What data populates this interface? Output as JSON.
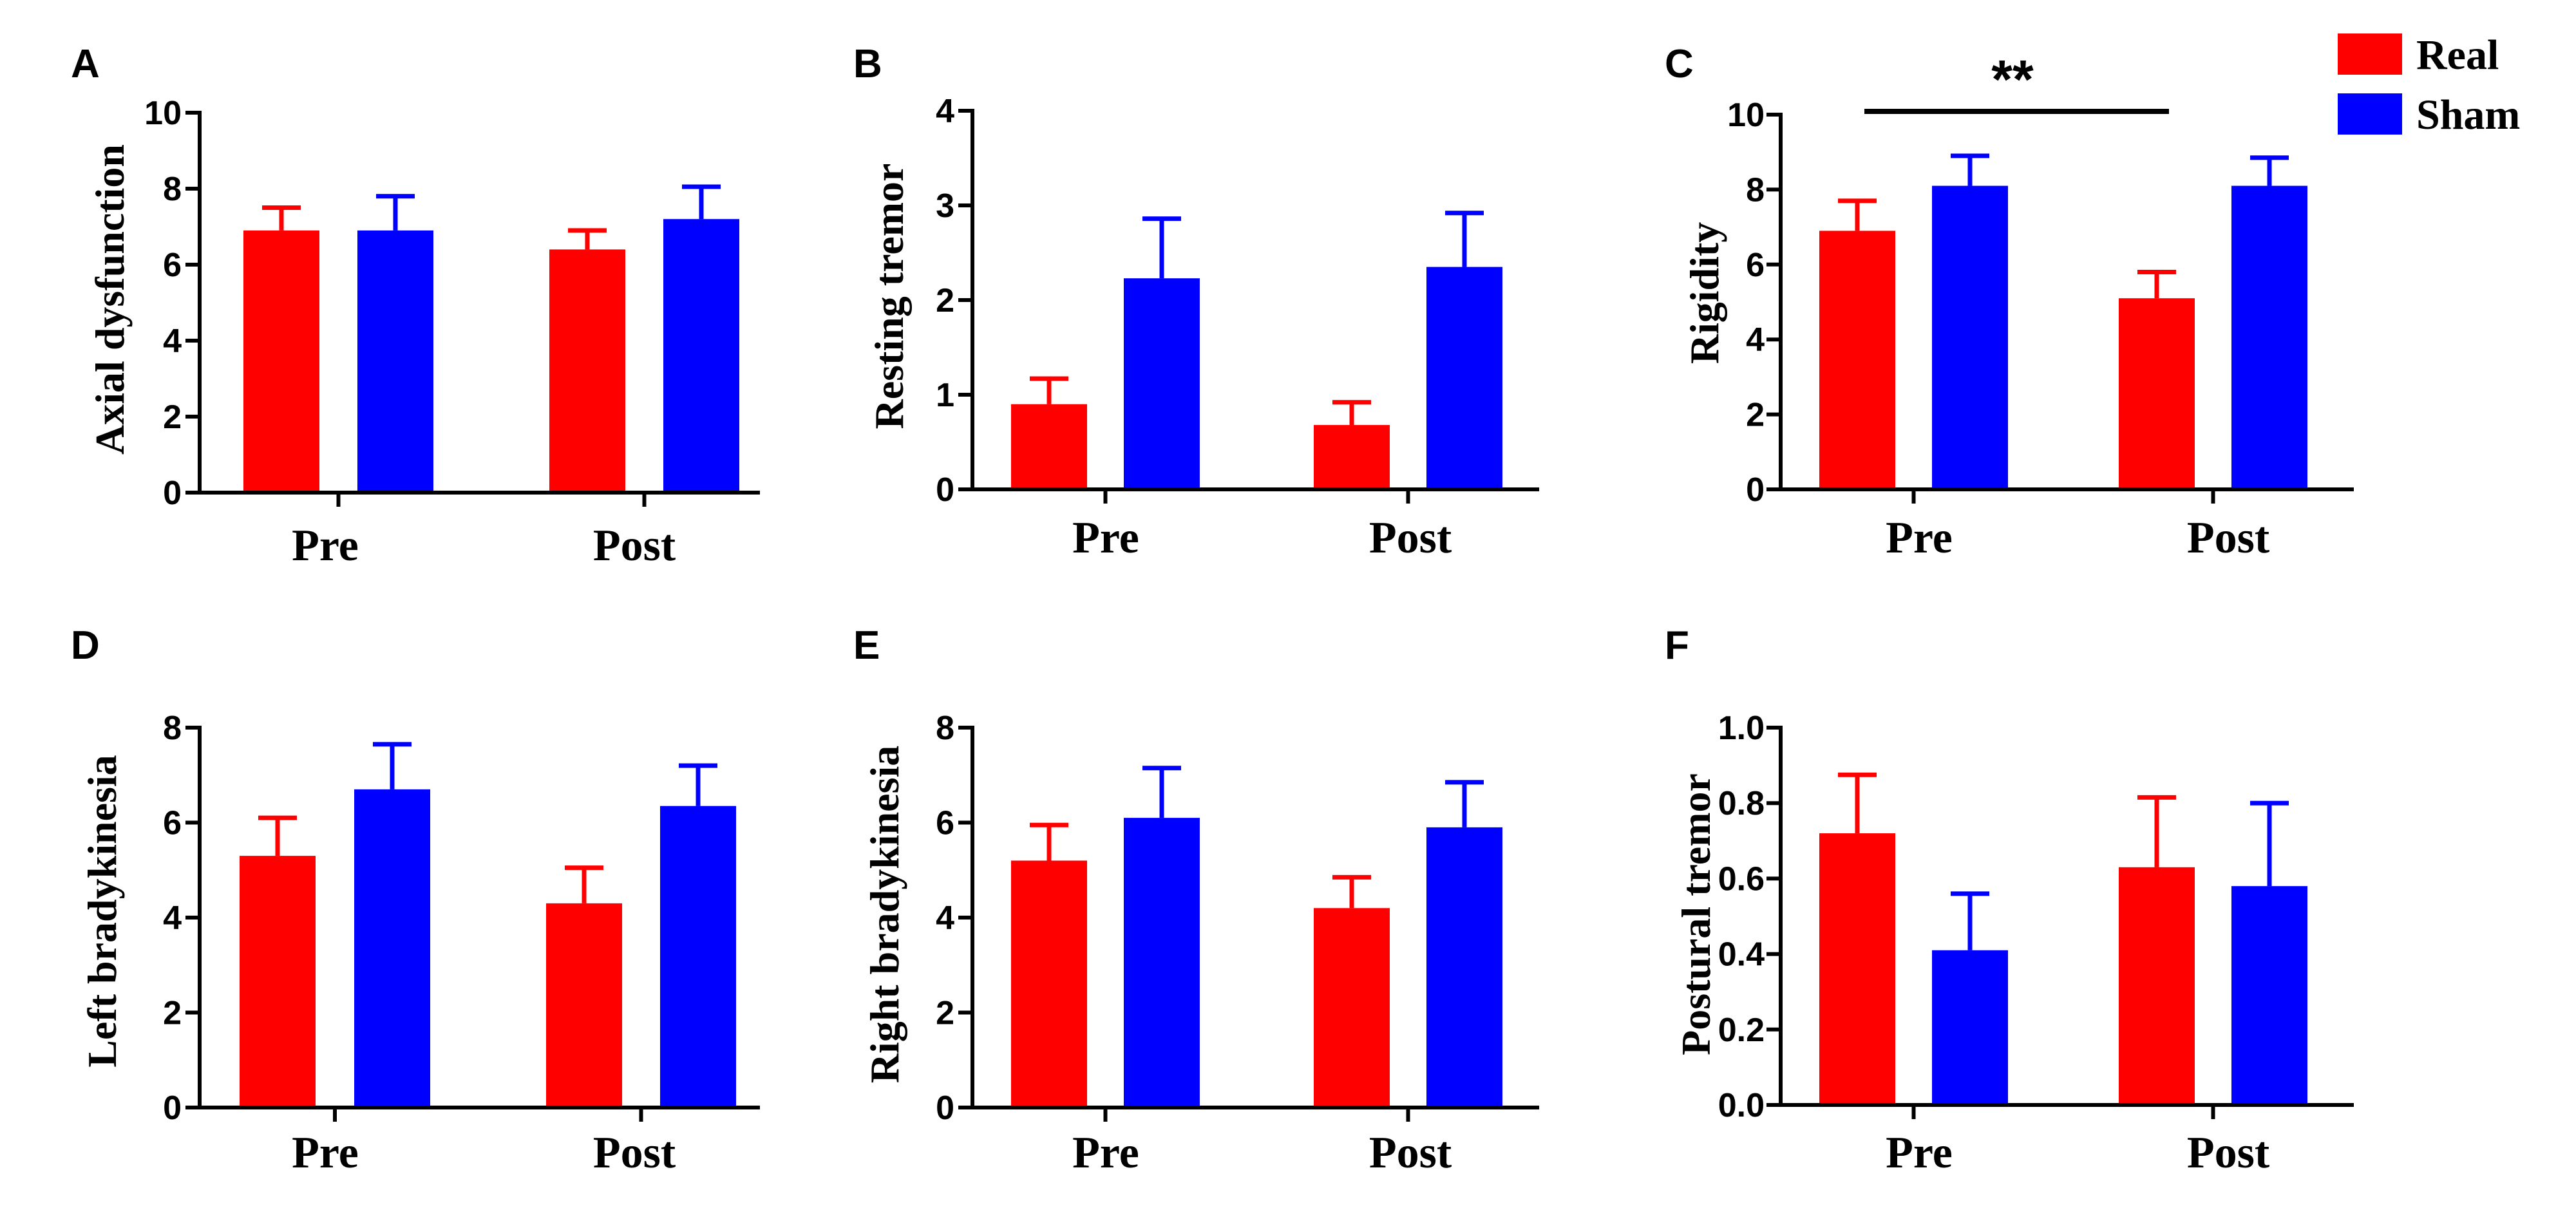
{
  "legend": {
    "position": "top-right",
    "items": [
      {
        "label": "Real",
        "color": "#ff0000"
      },
      {
        "label": "Sham",
        "color": "#0000ff"
      }
    ]
  },
  "chart_data": [
    {
      "panel": "A",
      "type": "bar",
      "ylabel": "Axial dysfunction",
      "categories": [
        "Pre",
        "Post"
      ],
      "ylim": [
        0,
        10
      ],
      "yticks": [
        "0",
        "2",
        "4",
        "6",
        "8",
        "10"
      ],
      "series": [
        {
          "name": "Real",
          "values": [
            6.9,
            6.4
          ],
          "errors": [
            0.6,
            0.5
          ]
        },
        {
          "name": "Sham",
          "values": [
            6.9,
            7.2
          ],
          "errors": [
            0.9,
            0.85
          ]
        }
      ]
    },
    {
      "panel": "B",
      "type": "bar",
      "ylabel": "Resting tremor",
      "categories": [
        "Pre",
        "Post"
      ],
      "ylim": [
        0,
        4
      ],
      "yticks": [
        "0",
        "1",
        "2",
        "3",
        "4"
      ],
      "series": [
        {
          "name": "Real",
          "values": [
            0.9,
            0.68
          ],
          "errors": [
            0.27,
            0.24
          ]
        },
        {
          "name": "Sham",
          "values": [
            2.23,
            2.35
          ],
          "errors": [
            0.63,
            0.57
          ]
        }
      ]
    },
    {
      "panel": "C",
      "type": "bar",
      "ylabel": "Rigidity",
      "categories": [
        "Pre",
        "Post"
      ],
      "ylim": [
        0,
        10
      ],
      "yticks": [
        "0",
        "2",
        "4",
        "6",
        "8",
        "10"
      ],
      "series": [
        {
          "name": "Real",
          "values": [
            6.9,
            5.1
          ],
          "errors": [
            0.8,
            0.7
          ]
        },
        {
          "name": "Sham",
          "values": [
            8.1,
            8.1
          ],
          "errors": [
            0.8,
            0.75
          ]
        }
      ],
      "annotation": {
        "text": "**",
        "from": "Pre",
        "to": "Post",
        "series": "Real"
      }
    },
    {
      "panel": "D",
      "type": "bar",
      "ylabel": "Left bradykinesia",
      "categories": [
        "Pre",
        "Post"
      ],
      "ylim": [
        0,
        8
      ],
      "yticks": [
        "0",
        "2",
        "4",
        "6",
        "8"
      ],
      "series": [
        {
          "name": "Real",
          "values": [
            5.3,
            4.3
          ],
          "errors": [
            0.8,
            0.75
          ]
        },
        {
          "name": "Sham",
          "values": [
            6.7,
            6.35
          ],
          "errors": [
            0.95,
            0.85
          ]
        }
      ]
    },
    {
      "panel": "E",
      "type": "bar",
      "ylabel": "Right bradykinesia",
      "categories": [
        "Pre",
        "Post"
      ],
      "ylim": [
        0,
        8
      ],
      "yticks": [
        "0",
        "2",
        "4",
        "6",
        "8"
      ],
      "series": [
        {
          "name": "Real",
          "values": [
            5.2,
            4.2
          ],
          "errors": [
            0.75,
            0.65
          ]
        },
        {
          "name": "Sham",
          "values": [
            6.1,
            5.9
          ],
          "errors": [
            1.05,
            0.95
          ]
        }
      ]
    },
    {
      "panel": "F",
      "type": "bar",
      "ylabel": "Postural tremor",
      "categories": [
        "Pre",
        "Post"
      ],
      "ylim": [
        0,
        1.0
      ],
      "yticks": [
        "0.0",
        "0.2",
        "0.4",
        "0.6",
        "0.8",
        "1.0"
      ],
      "series": [
        {
          "name": "Real",
          "values": [
            0.72,
            0.63
          ],
          "errors": [
            0.155,
            0.185
          ]
        },
        {
          "name": "Sham",
          "values": [
            0.41,
            0.58
          ],
          "errors": [
            0.15,
            0.22
          ]
        }
      ]
    }
  ]
}
